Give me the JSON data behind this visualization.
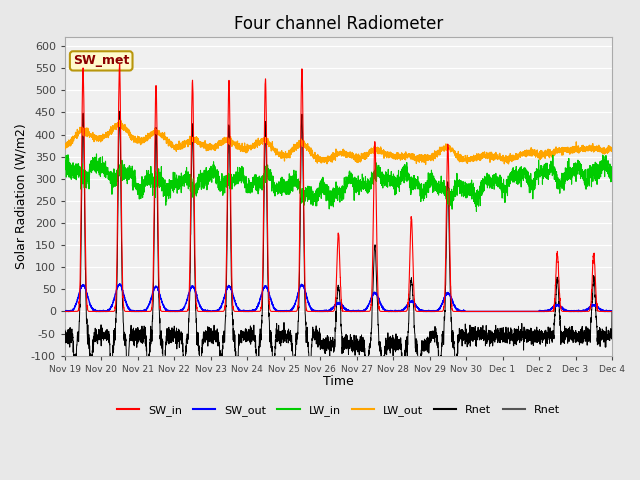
{
  "title": "Four channel Radiometer",
  "xlabel": "Time",
  "ylabel": "Solar Radiation (W/m2)",
  "ylim": [
    -100,
    620
  ],
  "yticks": [
    -100,
    -50,
    0,
    50,
    100,
    150,
    200,
    250,
    300,
    350,
    400,
    450,
    500,
    550,
    600
  ],
  "annotation_text": "SW_met",
  "annotation_color": "#8B0000",
  "annotation_bg": "#FFFACD",
  "annotation_border": "#B8960C",
  "colors": {
    "SW_in": "#FF0000",
    "SW_out": "#0000FF",
    "LW_in": "#00CC00",
    "LW_out": "#FFA500",
    "Rnet": "#000000",
    "Rnet2": "#555555"
  },
  "legend_labels": [
    "SW_in",
    "SW_out",
    "LW_in",
    "LW_out",
    "Rnet",
    "Rnet"
  ],
  "x_tick_labels": [
    "Nov 19",
    "Nov 20",
    "Nov 21",
    "Nov 22",
    "Nov 23",
    "Nov 24",
    "Nov 25",
    "Nov 26",
    "Nov 27",
    "Nov 28",
    "Nov 29",
    "Nov 30",
    "Dec 1",
    "Dec 2",
    "Dec 3",
    "Dec 4"
  ],
  "n_points": 4320,
  "background_color": "#E8E8E8",
  "plot_bg": "#F0F0F0",
  "grid_color": "#FFFFFF",
  "linewidth": 0.7,
  "sw_in_peaks": [
    550,
    560,
    510,
    520,
    520,
    525,
    550,
    175,
    385,
    210,
    375,
    0,
    0,
    130,
    130
  ],
  "sw_out_scale": 0.11,
  "lw_in_base": [
    315,
    320,
    295,
    285,
    300,
    295,
    290,
    260,
    290,
    305,
    280,
    270,
    295,
    310,
    310,
    320
  ],
  "lw_out_base": [
    370,
    395,
    390,
    370,
    365,
    365,
    355,
    345,
    345,
    345,
    345,
    345,
    350,
    355,
    360,
    365
  ],
  "rnet_night": -60,
  "figsize": [
    6.4,
    4.8
  ],
  "dpi": 100
}
